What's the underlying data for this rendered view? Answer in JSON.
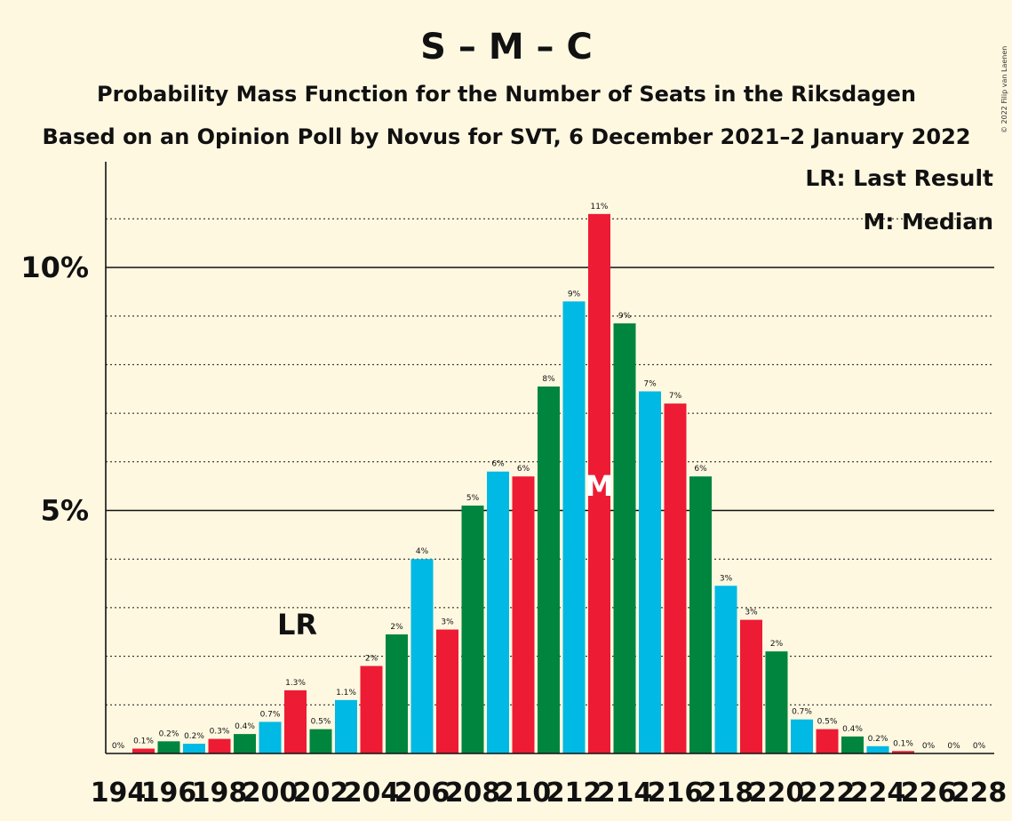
{
  "chart_data": {
    "type": "bar",
    "title": "S – M – C",
    "subtitle": "Probability Mass Function for the Number of Seats in the Riksdagen",
    "subtitle2": "Based on an Opinion Poll by Novus for SVT, 6 December 2021–2 January 2022",
    "copyright": "© 2022 Filip van Laenen",
    "ylim": [
      0,
      12
    ],
    "y_ticks": [
      {
        "value": 5,
        "label": "5%"
      },
      {
        "value": 10,
        "label": "10%"
      }
    ],
    "x_tick_labels": [
      "194",
      "196",
      "198",
      "200",
      "202",
      "204",
      "206",
      "208",
      "210",
      "212",
      "214",
      "216",
      "218",
      "220",
      "222",
      "224",
      "226",
      "228"
    ],
    "bar_colors": [
      "#00b9e4",
      "#ed1b34",
      "#00853f"
    ],
    "categories": [
      194,
      195,
      196,
      197,
      198,
      199,
      200,
      201,
      202,
      203,
      204,
      205,
      206,
      207,
      208,
      209,
      210,
      211,
      212,
      213,
      214,
      215,
      216,
      217,
      218,
      219,
      220,
      221,
      222,
      223,
      224,
      225,
      226,
      227,
      228
    ],
    "values": [
      0,
      0.1,
      0.25,
      0.2,
      0.3,
      0.4,
      0.65,
      1.3,
      0.5,
      1.1,
      1.8,
      2.45,
      4.0,
      2.55,
      5.1,
      5.8,
      5.7,
      7.55,
      9.3,
      11.1,
      8.85,
      7.45,
      7.2,
      5.7,
      3.45,
      2.75,
      2.1,
      0.7,
      0.5,
      0.35,
      0.15,
      0.05,
      0,
      0,
      0
    ],
    "labels": [
      "0%",
      "0.1%",
      "0.2%",
      "0.2%",
      "0.3%",
      "0.4%",
      "0.7%",
      "1.3%",
      "0.5%",
      "1.1%",
      "2%",
      "2%",
      "4%",
      "3%",
      "5%",
      "6%",
      "6%",
      "8%",
      "9%",
      "11%",
      "9%",
      "7%",
      "7%",
      "6%",
      "3%",
      "3%",
      "2%",
      "0.7%",
      "0.5%",
      "0.4%",
      "0.2%",
      "0.1%",
      "0%",
      "0%",
      "0%"
    ],
    "last_result": {
      "seat": 201,
      "label": "LR"
    },
    "median": {
      "seat": 213,
      "label": "M"
    },
    "legend": [
      "LR: Last Result",
      "M: Median"
    ],
    "grid": true,
    "legend_position": "top-right"
  }
}
